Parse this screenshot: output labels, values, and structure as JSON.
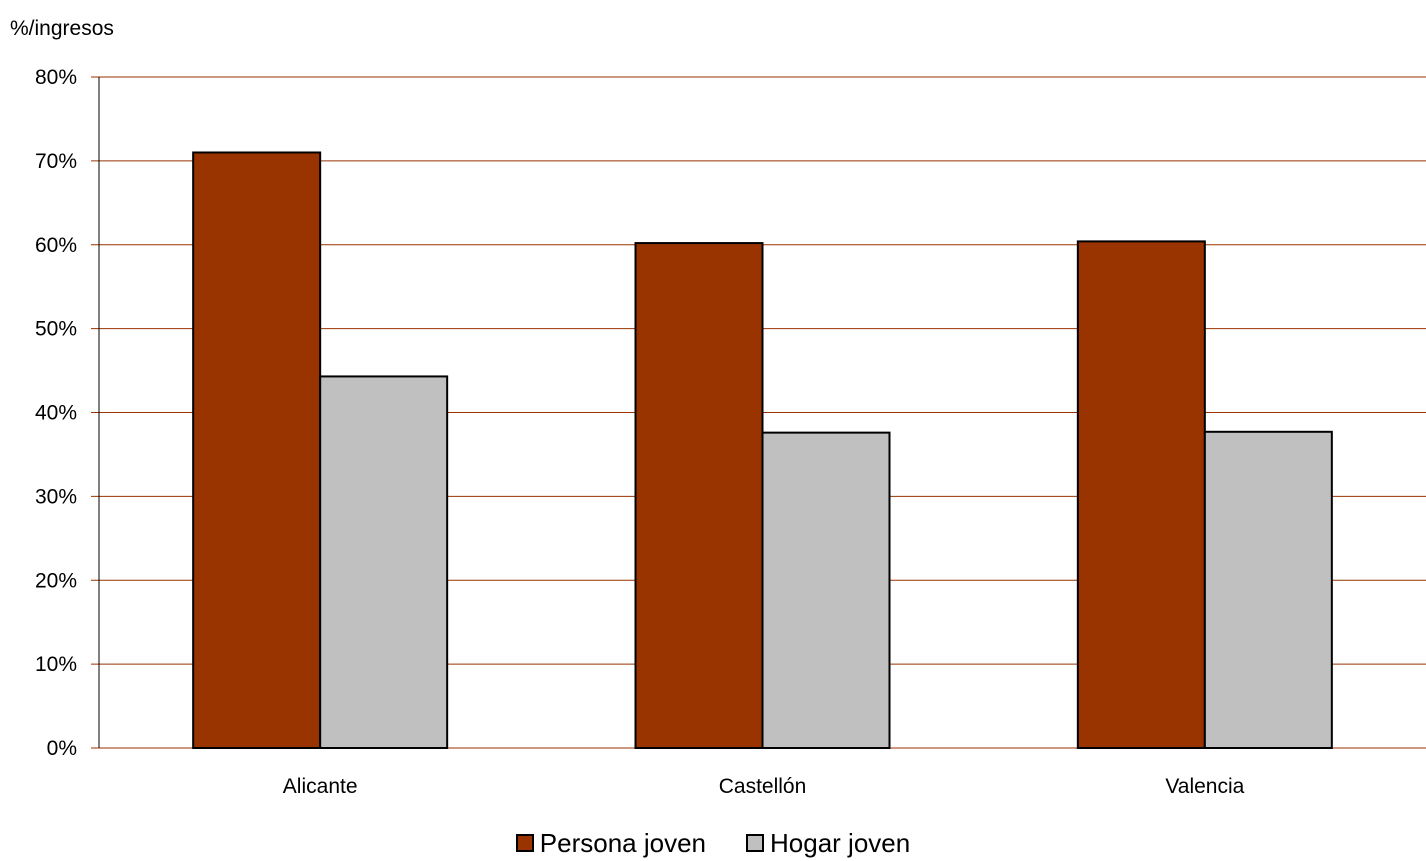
{
  "chart_data": {
    "type": "bar",
    "ylabel": "%/ingresos",
    "xlabel": "",
    "ylim": [
      0,
      80
    ],
    "yticks": [
      "0%",
      "10%",
      "20%",
      "30%",
      "40%",
      "50%",
      "60%",
      "70%",
      "80%"
    ],
    "categories": [
      "Alicante",
      "Castellón",
      "Valencia"
    ],
    "series": [
      {
        "name": "Persona joven",
        "values": [
          71.0,
          60.2,
          60.4
        ],
        "color": "#993300"
      },
      {
        "name": "Hogar joven",
        "values": [
          44.3,
          37.6,
          37.7
        ],
        "color": "#c0c0c0"
      }
    ],
    "grid": true,
    "grid_color": "#993300",
    "legend_position": "bottom"
  }
}
